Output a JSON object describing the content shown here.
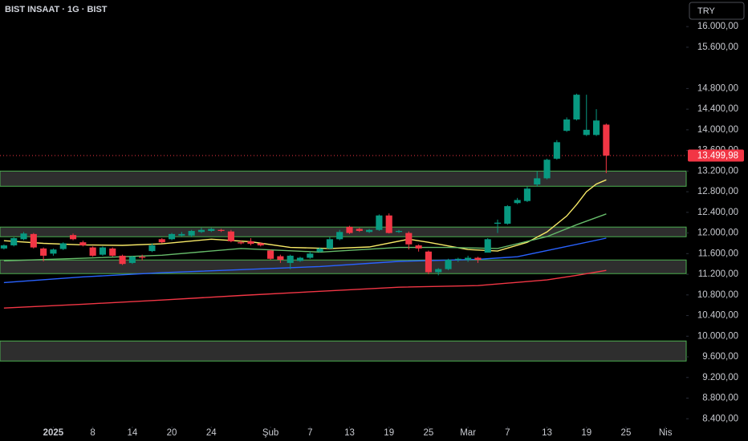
{
  "chart_data": {
    "type": "candlestick",
    "title": "BIST INSAAT · 1G · BIST",
    "currency_button": "TRY",
    "open": [
      11700,
      11760,
      11880,
      11980,
      11700,
      11600,
      11690,
      11960,
      11820,
      11720,
      11580,
      11700,
      11560,
      11420,
      11540,
      11650,
      11880,
      11880,
      11950,
      11950,
      12020,
      12040,
      12060,
      12030,
      11820,
      11840,
      11800,
      11660,
      11550,
      11420,
      11460,
      11520,
      11640,
      11700,
      11880,
      12120,
      12080,
      12020,
      12060,
      12340,
      12020,
      12000,
      11760,
      11640,
      11240,
      11300,
      11480,
      11480,
      11520,
      11620,
      12180,
      12180,
      12580,
      12620,
      12940,
      13060,
      13440,
      13980,
      14200,
      13900,
      13900,
      14100
    ],
    "high": [
      11780,
      11920,
      12020,
      12000,
      11720,
      11700,
      11820,
      11990,
      11850,
      11740,
      11740,
      11720,
      11580,
      11560,
      11580,
      11800,
      11900,
      12000,
      12020,
      12060,
      12100,
      12100,
      12080,
      12060,
      11860,
      11900,
      11820,
      11680,
      11580,
      11580,
      11540,
      11640,
      11720,
      11920,
      12060,
      12140,
      12100,
      12080,
      12360,
      12380,
      12060,
      12030,
      11780,
      11660,
      11320,
      11500,
      11520,
      11560,
      11540,
      11900,
      12260,
      12540,
      12680,
      12900,
      13200,
      13440,
      13800,
      14240,
      14700,
      14680,
      14400,
      14120
    ],
    "low": [
      11680,
      11740,
      11860,
      11700,
      11450,
      11560,
      11670,
      11860,
      11740,
      11540,
      11560,
      11540,
      11380,
      11400,
      11470,
      11630,
      11800,
      11860,
      11930,
      11920,
      12000,
      12020,
      12020,
      11820,
      11780,
      11760,
      11740,
      11480,
      11420,
      11300,
      11440,
      11500,
      11620,
      11680,
      11860,
      11980,
      12020,
      12000,
      12040,
      11990,
      12000,
      11680,
      11640,
      11200,
      11180,
      11280,
      11440,
      11440,
      11420,
      11620,
      12000,
      12160,
      12560,
      12600,
      12900,
      13040,
      13420,
      13960,
      14180,
      13880,
      13880,
      13160
    ],
    "close": [
      11760,
      11900,
      11990,
      11720,
      11560,
      11680,
      11800,
      11880,
      11760,
      11560,
      11720,
      11560,
      11400,
      11540,
      11520,
      11760,
      11820,
      11980,
      11980,
      12040,
      12060,
      12080,
      12040,
      11840,
      11800,
      11790,
      11760,
      11500,
      11480,
      11560,
      11520,
      11600,
      11700,
      11880,
      12020,
      12000,
      12040,
      12060,
      12340,
      12000,
      12040,
      11780,
      11700,
      11240,
      11300,
      11480,
      11500,
      11520,
      11480,
      11880,
      12200,
      12520,
      12640,
      12860,
      13060,
      13420,
      13760,
      14200,
      14680,
      14000,
      14180,
      13499.98
    ],
    "up_color": "#089981",
    "down_color": "#f23645",
    "moving_averages": [
      {
        "color": "#f7e967",
        "x": [
          0,
          4,
          8,
          12,
          16,
          21,
          25,
          29,
          33,
          37,
          41,
          43,
          47,
          50,
          53,
          55,
          57,
          58,
          59,
          60,
          61
        ],
        "values": [
          11850,
          11800,
          11770,
          11760,
          11790,
          11880,
          11830,
          11720,
          11700,
          11730,
          11880,
          11820,
          11680,
          11650,
          11820,
          12020,
          12330,
          12550,
          12800,
          12950,
          13030
        ]
      },
      {
        "color": "#66bb6a",
        "x": [
          0,
          8,
          16,
          24,
          32,
          40,
          45,
          50,
          55,
          58,
          61
        ],
        "values": [
          11460,
          11510,
          11570,
          11700,
          11630,
          11720,
          11720,
          11700,
          11930,
          12160,
          12370
        ]
      },
      {
        "color": "#2962ff",
        "x": [
          0,
          8,
          16,
          24,
          32,
          40,
          48,
          52,
          56,
          61
        ],
        "values": [
          11040,
          11150,
          11230,
          11290,
          11350,
          11450,
          11490,
          11540,
          11700,
          11900
        ]
      },
      {
        "color": "#f23645",
        "x": [
          0,
          8,
          16,
          24,
          32,
          40,
          48,
          55,
          58,
          61
        ],
        "values": [
          10545,
          10620,
          10700,
          10790,
          10870,
          10950,
          10980,
          11090,
          11180,
          11275
        ]
      }
    ],
    "zones": [
      [
        13200,
        12906
      ],
      [
        12115,
        11928
      ],
      [
        11477,
        11213
      ],
      [
        9907,
        9519
      ]
    ],
    "last_price": 13499.98,
    "last_price_label": "13.499,98",
    "xlim": [
      -0.4,
      69.1
    ],
    "ylim": [
      8000,
      16500
    ],
    "xticks": [
      {
        "value": 5,
        "label": "2025"
      },
      {
        "value": 9,
        "label": "8"
      },
      {
        "value": 13,
        "label": "14"
      },
      {
        "value": 17,
        "label": "20"
      },
      {
        "value": 21,
        "label": "24"
      },
      {
        "value": 27,
        "label": "Şub"
      },
      {
        "value": 31,
        "label": "7"
      },
      {
        "value": 35,
        "label": "13"
      },
      {
        "value": 39,
        "label": "19"
      },
      {
        "value": 43,
        "label": "25"
      },
      {
        "value": 47,
        "label": "Mar"
      },
      {
        "value": 51,
        "label": "7"
      },
      {
        "value": 55,
        "label": "13"
      },
      {
        "value": 59,
        "label": "19"
      },
      {
        "value": 63,
        "label": "25"
      },
      {
        "value": 67,
        "label": "Nis"
      }
    ],
    "yticks": [
      {
        "value": 16000,
        "label": "16.000,00"
      },
      {
        "value": 15600,
        "label": "15.600,00"
      },
      {
        "value": 14800,
        "label": "14.800,00"
      },
      {
        "value": 14400,
        "label": "14.400,00"
      },
      {
        "value": 14000,
        "label": "14.000,00"
      },
      {
        "value": 13600,
        "label": "13.600,00"
      },
      {
        "value": 13200,
        "label": "13.200,00"
      },
      {
        "value": 12800,
        "label": "12.800,00"
      },
      {
        "value": 12400,
        "label": "12.400,00"
      },
      {
        "value": 12000,
        "label": "12.000,00"
      },
      {
        "value": 11600,
        "label": "11.600,00"
      },
      {
        "value": 11200,
        "label": "11.200,00"
      },
      {
        "value": 10800,
        "label": "10.800,00"
      },
      {
        "value": 10400,
        "label": "10.400,00"
      },
      {
        "value": 10000,
        "label": "10.000,00"
      },
      {
        "value": 9600,
        "label": "9.600,00"
      },
      {
        "value": 9200,
        "label": "9.200,00"
      },
      {
        "value": 8800,
        "label": "8.800,00"
      },
      {
        "value": 8400,
        "label": "8.400,00"
      }
    ]
  }
}
